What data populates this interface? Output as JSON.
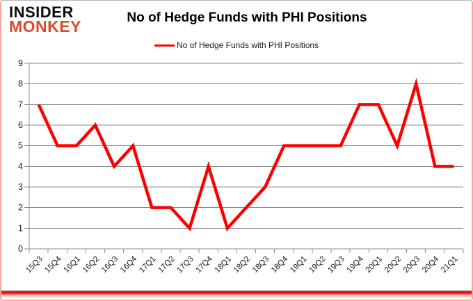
{
  "branding": {
    "logo_line1": "INSIDER",
    "logo_line2": "MONKEY"
  },
  "header": {
    "title": "No of Hedge Funds with PHI Positions"
  },
  "legend": {
    "label": "No of Hedge Funds with PHI Positions"
  },
  "chart_data": {
    "type": "line",
    "title": "No of Hedge Funds with PHI Positions",
    "categories": [
      "15Q3",
      "15Q4",
      "16Q1",
      "16Q2",
      "16Q3",
      "16Q4",
      "17Q1",
      "17Q2",
      "17Q3",
      "17Q4",
      "18Q1",
      "18Q2",
      "18Q3",
      "18Q4",
      "19Q1",
      "19Q2",
      "19Q3",
      "19Q4",
      "20Q1",
      "20Q2",
      "20Q3",
      "20Q4",
      "21Q1"
    ],
    "series": [
      {
        "name": "No of Hedge Funds with PHI Positions",
        "color": "#FF0000",
        "values": [
          7,
          5,
          5,
          6,
          4,
          5,
          2,
          2,
          1,
          4,
          1,
          2,
          3,
          5,
          5,
          5,
          5,
          7,
          7,
          5,
          8,
          4,
          4
        ]
      }
    ],
    "ylim": [
      0,
      9
    ],
    "y_ticks": [
      0,
      1,
      2,
      3,
      4,
      5,
      6,
      7,
      8,
      9
    ],
    "xlabel": "",
    "ylabel": "",
    "grid": true,
    "legend_position": "top"
  },
  "colors": {
    "line": "#FF0000",
    "grid": "#8c8c8c",
    "axis": "#8c8c8c",
    "text": "#1a1a1a",
    "logo_accent": "#DB4A2B",
    "bottom_bar": "#FF0000"
  }
}
